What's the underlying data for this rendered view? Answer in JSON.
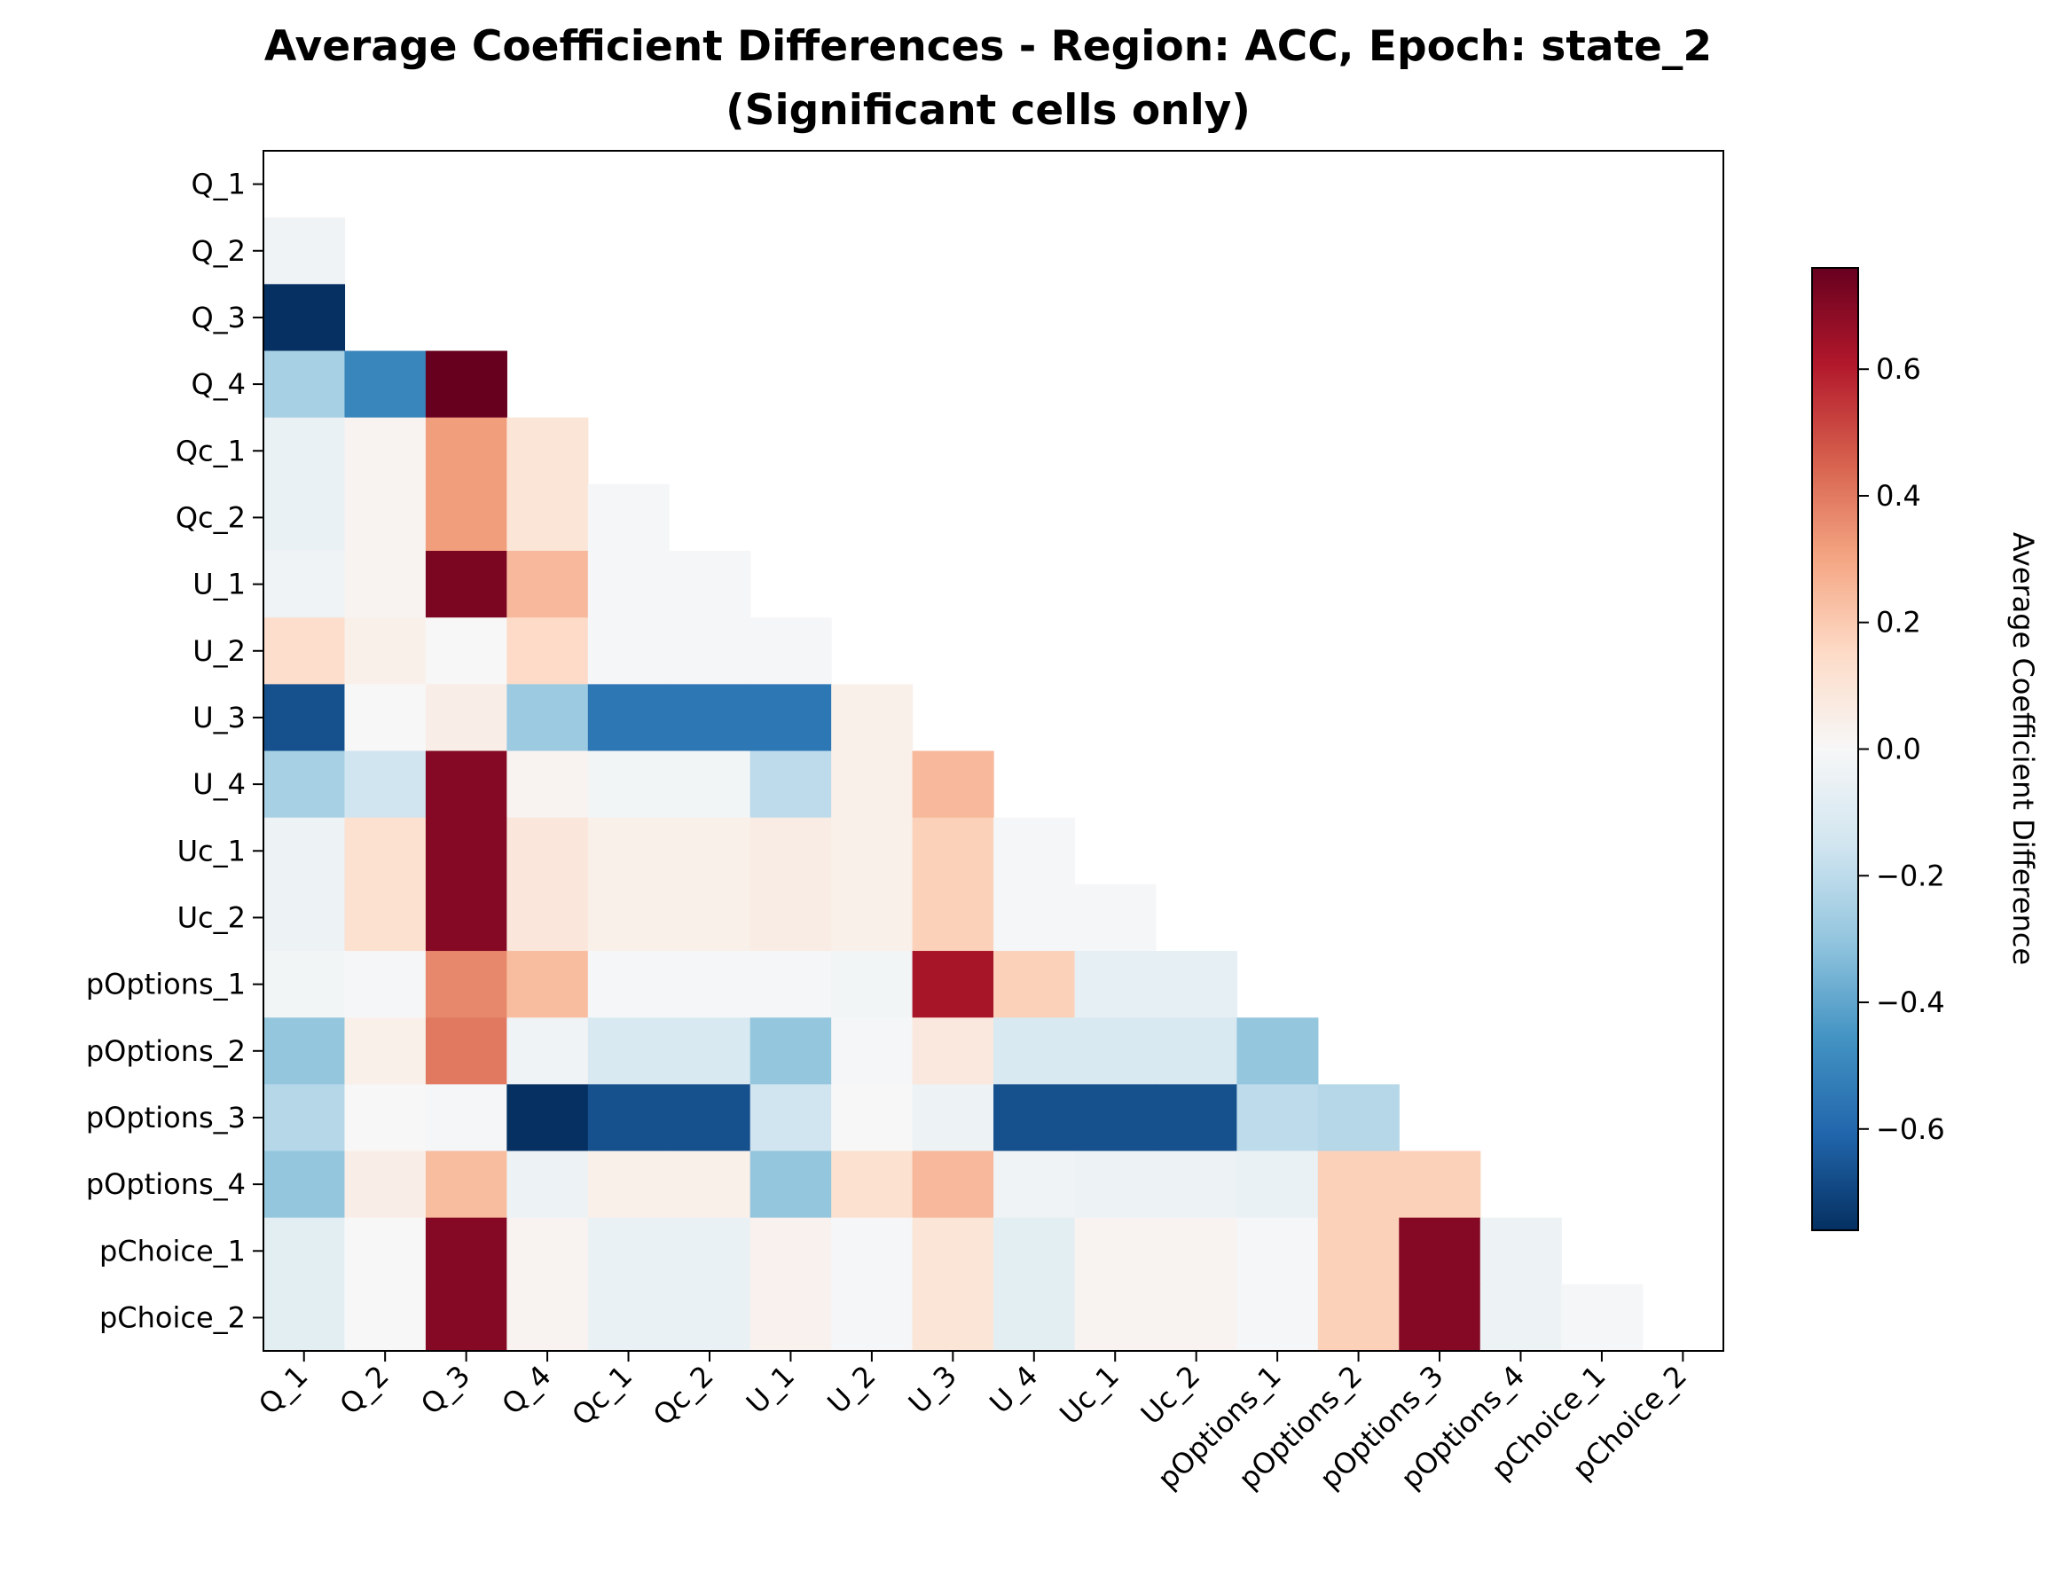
{
  "chart_data": {
    "type": "heatmap",
    "title": "Average Coefficient Differences - Region: ACC, Epoch: state_2",
    "subtitle": "(Significant cells only)",
    "row_labels": [
      "Q_1",
      "Q_2",
      "Q_3",
      "Q_4",
      "Qc_1",
      "Qc_2",
      "U_1",
      "U_2",
      "U_3",
      "U_4",
      "Uc_1",
      "Uc_2",
      "pOptions_1",
      "pOptions_2",
      "pOptions_3",
      "pOptions_4",
      "pChoice_1",
      "pChoice_2"
    ],
    "col_labels": [
      "Q_1",
      "Q_2",
      "Q_3",
      "Q_4",
      "Qc_1",
      "Qc_2",
      "U_1",
      "U_2",
      "U_3",
      "U_4",
      "Uc_1",
      "Uc_2",
      "pOptions_1",
      "pOptions_2",
      "pOptions_3",
      "pOptions_4",
      "pChoice_1",
      "pChoice_2"
    ],
    "values": [
      [
        null,
        null,
        null,
        null,
        null,
        null,
        null,
        null,
        null,
        null,
        null,
        null,
        null,
        null,
        null,
        null,
        null,
        null
      ],
      [
        -0.03,
        null,
        null,
        null,
        null,
        null,
        null,
        null,
        null,
        null,
        null,
        null,
        null,
        null,
        null,
        null,
        null,
        null
      ],
      [
        -0.76,
        null,
        null,
        null,
        null,
        null,
        null,
        null,
        null,
        null,
        null,
        null,
        null,
        null,
        null,
        null,
        null,
        null
      ],
      [
        -0.25,
        -0.5,
        0.76,
        null,
        null,
        null,
        null,
        null,
        null,
        null,
        null,
        null,
        null,
        null,
        null,
        null,
        null,
        null
      ],
      [
        -0.05,
        0.02,
        0.32,
        0.1,
        null,
        null,
        null,
        null,
        null,
        null,
        null,
        null,
        null,
        null,
        null,
        null,
        null,
        null
      ],
      [
        -0.05,
        0.02,
        0.32,
        0.1,
        -0.01,
        null,
        null,
        null,
        null,
        null,
        null,
        null,
        null,
        null,
        null,
        null,
        null,
        null
      ],
      [
        -0.03,
        0.02,
        0.72,
        0.25,
        -0.01,
        -0.01,
        null,
        null,
        null,
        null,
        null,
        null,
        null,
        null,
        null,
        null,
        null,
        null
      ],
      [
        0.14,
        0.04,
        0.0,
        0.15,
        -0.01,
        -0.01,
        -0.01,
        null,
        null,
        null,
        null,
        null,
        null,
        null,
        null,
        null,
        null,
        null
      ],
      [
        -0.67,
        0.0,
        0.05,
        -0.28,
        -0.55,
        -0.55,
        -0.55,
        0.04,
        null,
        null,
        null,
        null,
        null,
        null,
        null,
        null,
        null,
        null
      ],
      [
        -0.25,
        -0.15,
        0.7,
        0.02,
        -0.02,
        -0.02,
        -0.2,
        0.04,
        0.25,
        null,
        null,
        null,
        null,
        null,
        null,
        null,
        null,
        null
      ],
      [
        -0.04,
        0.12,
        0.7,
        0.09,
        0.04,
        0.04,
        0.06,
        0.04,
        0.18,
        -0.01,
        null,
        null,
        null,
        null,
        null,
        null,
        null,
        null
      ],
      [
        -0.04,
        0.12,
        0.7,
        0.09,
        0.04,
        0.04,
        0.06,
        0.04,
        0.18,
        -0.01,
        -0.01,
        null,
        null,
        null,
        null,
        null,
        null,
        null
      ],
      [
        -0.02,
        -0.01,
        0.37,
        0.24,
        -0.01,
        -0.01,
        -0.01,
        -0.02,
        0.63,
        0.18,
        -0.07,
        -0.07,
        null,
        null,
        null,
        null,
        null,
        null
      ],
      [
        -0.3,
        0.04,
        0.4,
        -0.03,
        -0.12,
        -0.12,
        -0.3,
        -0.01,
        0.08,
        -0.12,
        -0.12,
        -0.12,
        -0.3,
        null,
        null,
        null,
        null,
        null
      ],
      [
        -0.22,
        0.0,
        -0.01,
        -0.76,
        -0.67,
        -0.67,
        -0.15,
        0.0,
        -0.04,
        -0.67,
        -0.67,
        -0.67,
        -0.2,
        -0.22,
        null,
        null,
        null,
        null
      ],
      [
        -0.3,
        0.05,
        0.24,
        -0.04,
        0.04,
        0.04,
        -0.3,
        0.12,
        0.25,
        -0.03,
        -0.04,
        -0.04,
        -0.05,
        0.18,
        0.18,
        null,
        null,
        null
      ],
      [
        -0.08,
        0.0,
        0.7,
        0.02,
        -0.05,
        -0.05,
        0.03,
        -0.01,
        0.1,
        -0.08,
        0.02,
        0.02,
        -0.01,
        0.18,
        0.7,
        -0.04,
        null,
        null
      ],
      [
        -0.08,
        0.0,
        0.7,
        0.02,
        -0.05,
        -0.05,
        0.03,
        -0.01,
        0.1,
        -0.08,
        0.02,
        0.02,
        -0.01,
        0.18,
        0.7,
        -0.04,
        -0.01,
        null
      ]
    ],
    "colormap": "RdBu_r",
    "vmin": -0.76,
    "vmax": 0.76,
    "colorbar": {
      "label": "Average Coefficient Difference",
      "ticks": [
        0.6,
        0.4,
        0.2,
        0.0,
        -0.2,
        -0.4,
        -0.6
      ],
      "tick_labels": [
        "0.6",
        "0.4",
        "0.2",
        "0.0",
        "−0.2",
        "−0.4",
        "−0.6"
      ]
    }
  }
}
